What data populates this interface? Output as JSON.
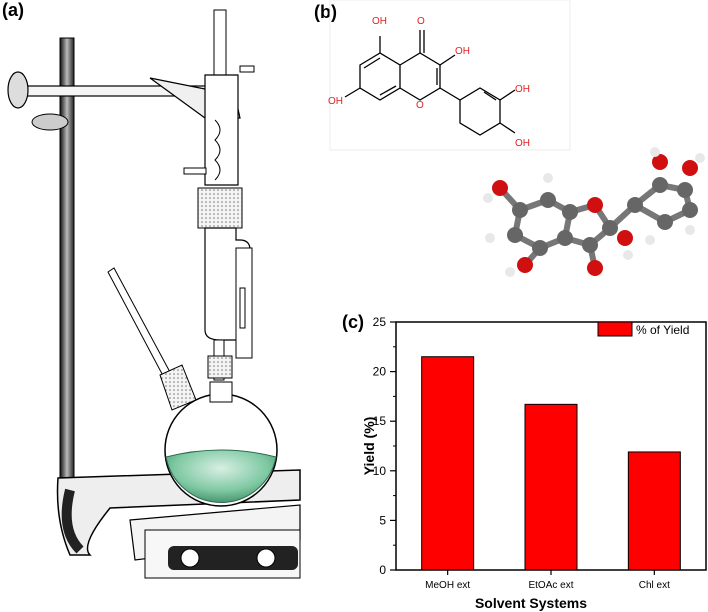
{
  "panels": {
    "a": "(a)",
    "b": "(b)",
    "c": "(c)"
  },
  "structure": {
    "hydroxyls": [
      "OH",
      "OH",
      "OH",
      "OH",
      "OH"
    ],
    "ring_oxygen": "O",
    "carbonyl_oxygen": "O"
  },
  "chart_data": {
    "type": "bar",
    "categories": [
      "MeOH ext",
      "EtOAc ext",
      "Chl ext"
    ],
    "series": [
      {
        "name": "% of Yield",
        "values": [
          21.5,
          16.7,
          11.9
        ]
      }
    ],
    "xlabel": "Solvent Systems",
    "ylabel": "Yield (%)",
    "ylim": [
      0,
      25
    ],
    "yticks": [
      "0",
      "5",
      "10",
      "15",
      "20",
      "25"
    ],
    "legend_position": "top-right",
    "bar_color": "#ff0000"
  },
  "colors": {
    "oxygen": "#e02020",
    "glass": "#555555",
    "flask_liquid": "#7fc9a3"
  }
}
